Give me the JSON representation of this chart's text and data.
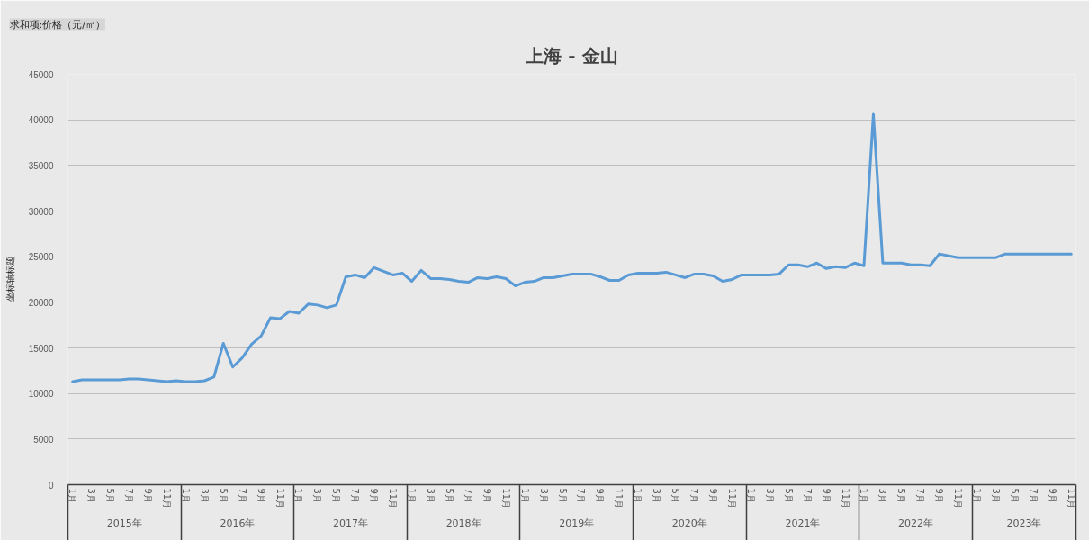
{
  "chart_data": {
    "type": "line",
    "title": "上海 - 金山",
    "ylabel": "坐标轴标题",
    "categories": [
      "1月",
      null,
      "3月",
      null,
      "5月",
      null,
      "7月",
      null,
      "9月",
      null,
      "11月",
      null,
      "1月",
      null,
      "3月",
      null,
      "5月",
      null,
      "7月",
      null,
      "9月",
      null,
      "11月",
      null,
      "1月",
      null,
      "3月",
      null,
      "5月",
      null,
      "7月",
      null,
      "9月",
      null,
      "11月",
      null,
      "1月",
      null,
      "3月",
      null,
      "5月",
      null,
      "7月",
      null,
      "9月",
      null,
      "11月",
      null,
      "1月",
      null,
      "3月",
      null,
      "5月",
      null,
      "7月",
      null,
      "9月",
      null,
      "11月",
      null,
      "1月",
      null,
      "3月",
      null,
      "5月",
      null,
      "7月",
      null,
      "9月",
      null,
      "11月",
      null,
      "1月",
      null,
      "3月",
      null,
      "5月",
      null,
      "7月",
      null,
      "9月",
      null,
      "11月",
      null,
      "1月",
      null,
      "3月",
      null,
      "5月",
      null,
      "7月",
      null,
      "9月",
      null,
      "11月",
      null,
      "1月",
      null,
      "3月",
      null,
      "5月",
      null,
      "7月",
      null,
      "9月",
      null,
      "11月"
    ],
    "values": [
      11300,
      11500,
      11500,
      11500,
      11500,
      11500,
      11600,
      11600,
      11500,
      11400,
      11300,
      11400,
      11300,
      11300,
      11400,
      11800,
      15500,
      12900,
      13900,
      15400,
      16300,
      18300,
      18200,
      19000,
      18800,
      19800,
      19700,
      19400,
      19700,
      22800,
      23000,
      22700,
      23800,
      23400,
      23000,
      23200,
      22300,
      23500,
      22600,
      22600,
      22500,
      22300,
      22200,
      22700,
      22600,
      22800,
      22600,
      21800,
      22200,
      22300,
      22700,
      22700,
      22900,
      23100,
      23100,
      23100,
      22800,
      22400,
      22400,
      23000,
      23200,
      23200,
      23200,
      23300,
      23000,
      22700,
      23100,
      23100,
      22900,
      22300,
      22500,
      23000,
      23000,
      23000,
      23000,
      23100,
      24100,
      24100,
      23900,
      24300,
      23700,
      23900,
      23800,
      24300,
      24000,
      40600,
      24300,
      24300,
      24300,
      24100,
      24100,
      24000,
      25300,
      25100,
      24900,
      24900,
      24900,
      24900,
      24900,
      25300,
      25300,
      25300,
      25300,
      25300,
      25300,
      25300,
      25300
    ],
    "color": "#5b9bd5",
    "ylim": [
      0,
      45000
    ],
    "yticks": [
      0,
      5000,
      10000,
      15000,
      20000,
      25000,
      30000,
      35000,
      40000,
      45000
    ],
    "grid": "y",
    "annotations": [
      "求和项:价格（元/㎡）",
      "2015年",
      "2016年",
      "2017年",
      "2018年",
      "2019年",
      "2020年",
      "2021年",
      "2022年",
      "2023年"
    ]
  }
}
